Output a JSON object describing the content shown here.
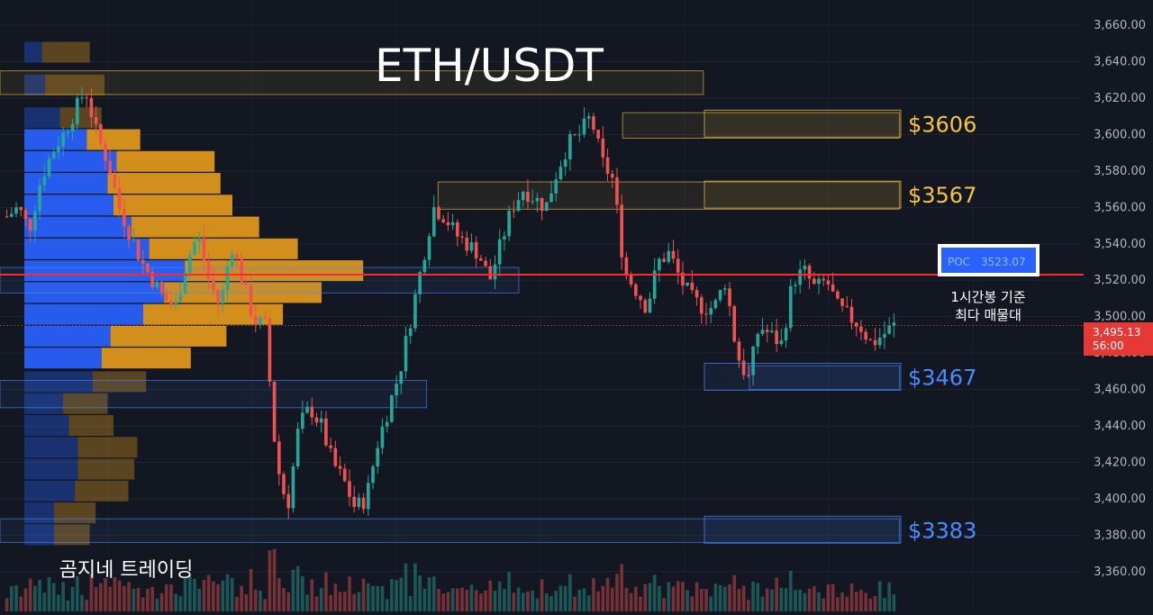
{
  "title": "ETH/USDT",
  "watermark": "곰지네 트레이딩",
  "colors": {
    "background": "#131722",
    "bull": "#26a69a",
    "bear": "#ef5350",
    "support": "#4a8cff",
    "resistance": "#f6c443",
    "poc_line": "#ff2a2a",
    "vp_buy": "#2962ff",
    "vp_sell": "#e39a1c"
  },
  "price_axis": {
    "min": 3350,
    "max": 3665,
    "ticks": [
      "3,660.00",
      "3,640.00",
      "3,620.00",
      "3,600.00",
      "3,580.00",
      "3,560.00",
      "3,540.00",
      "3,520.00",
      "3,500.00",
      "3,480.00",
      "3,460.00",
      "3,440.00",
      "3,420.00",
      "3,400.00",
      "3,380.00",
      "3,360.00"
    ]
  },
  "current_price": {
    "value": 3495.13,
    "label": "3,495.13",
    "countdown": "56:00"
  },
  "poc": {
    "value": 3523.07,
    "label_prefix": "POC",
    "label_value": "3523.07",
    "note_line1": "1시간봉 기준",
    "note_line2": "최다 매물대"
  },
  "levels": [
    {
      "label": "$3606",
      "value": 3606,
      "kind": "resistance"
    },
    {
      "label": "$3567",
      "value": 3567,
      "kind": "resistance"
    },
    {
      "label": "$3467",
      "value": 3467,
      "kind": "support"
    },
    {
      "label": "$3383",
      "value": 3383,
      "kind": "support"
    }
  ],
  "chart_data": {
    "type": "candlestick",
    "title": "ETH/USDT",
    "series": [
      {
        "close_path": [
          3555,
          3560,
          3548,
          3575,
          3590,
          3600,
          3612,
          3625,
          3600,
          3585,
          3560,
          3545,
          3530,
          3520,
          3510,
          3505,
          3530,
          3545,
          3520,
          3505,
          3540,
          3520,
          3498,
          3495,
          3420,
          3395,
          3440,
          3450,
          3440,
          3420,
          3410,
          3395,
          3400,
          3430,
          3450,
          3470,
          3500,
          3530,
          3560,
          3555,
          3545,
          3540,
          3535,
          3520,
          3540,
          3560,
          3570,
          3565,
          3560,
          3580,
          3595,
          3600,
          3610,
          3585,
          3575,
          3525,
          3515,
          3505,
          3530,
          3535,
          3520,
          3510,
          3505,
          3505,
          3520,
          3480,
          3465,
          3495,
          3490,
          3485,
          3520,
          3525,
          3515,
          3520,
          3505,
          3500,
          3495,
          3485,
          3490,
          3495
        ]
      }
    ],
    "volume_profile": {
      "bins": [
        {
          "price": 3645,
          "buy": 0.06,
          "sell": 0.16
        },
        {
          "price": 3627,
          "buy": 0.07,
          "sell": 0.2
        },
        {
          "price": 3609,
          "buy": 0.12,
          "sell": 0.14
        },
        {
          "price": 3597,
          "buy": 0.21,
          "sell": 0.18
        },
        {
          "price": 3585,
          "buy": 0.31,
          "sell": 0.33
        },
        {
          "price": 3573,
          "buy": 0.28,
          "sell": 0.38
        },
        {
          "price": 3561,
          "buy": 0.3,
          "sell": 0.4
        },
        {
          "price": 3549,
          "buy": 0.36,
          "sell": 0.43
        },
        {
          "price": 3537,
          "buy": 0.42,
          "sell": 0.5
        },
        {
          "price": 3525,
          "buy": 0.54,
          "sell": 0.6
        },
        {
          "price": 3513,
          "buy": 0.47,
          "sell": 0.53
        },
        {
          "price": 3501,
          "buy": 0.4,
          "sell": 0.47
        },
        {
          "price": 3489,
          "buy": 0.29,
          "sell": 0.39
        },
        {
          "price": 3477,
          "buy": 0.26,
          "sell": 0.3
        },
        {
          "price": 3464,
          "buy": 0.23,
          "sell": 0.18
        },
        {
          "price": 3452,
          "buy": 0.13,
          "sell": 0.15
        },
        {
          "price": 3440,
          "buy": 0.15,
          "sell": 0.15
        },
        {
          "price": 3428,
          "buy": 0.18,
          "sell": 0.2
        },
        {
          "price": 3416,
          "buy": 0.18,
          "sell": 0.19
        },
        {
          "price": 3404,
          "buy": 0.17,
          "sell": 0.18
        },
        {
          "price": 3392,
          "buy": 0.1,
          "sell": 0.14
        },
        {
          "price": 3380,
          "buy": 0.1,
          "sell": 0.12
        }
      ]
    },
    "zones": [
      {
        "top": 3635,
        "bottom": 3622,
        "start": 0.0,
        "end": 0.61,
        "kind": "resistance"
      },
      {
        "top": 3612,
        "bottom": 3598,
        "start": 0.54,
        "end": 0.78,
        "kind": "resistance"
      },
      {
        "top": 3574,
        "bottom": 3559,
        "start": 0.38,
        "end": 0.78,
        "kind": "resistance"
      },
      {
        "top": 3527,
        "bottom": 3513,
        "start": 0.0,
        "end": 0.45,
        "kind": "support"
      },
      {
        "top": 3473,
        "bottom": 3460,
        "start": 0.65,
        "end": 0.78,
        "kind": "support"
      },
      {
        "top": 3465,
        "bottom": 3450,
        "start": 0.0,
        "end": 0.37,
        "kind": "support"
      },
      {
        "top": 3389,
        "bottom": 3376,
        "start": 0.0,
        "end": 0.78,
        "kind": "support"
      }
    ]
  }
}
